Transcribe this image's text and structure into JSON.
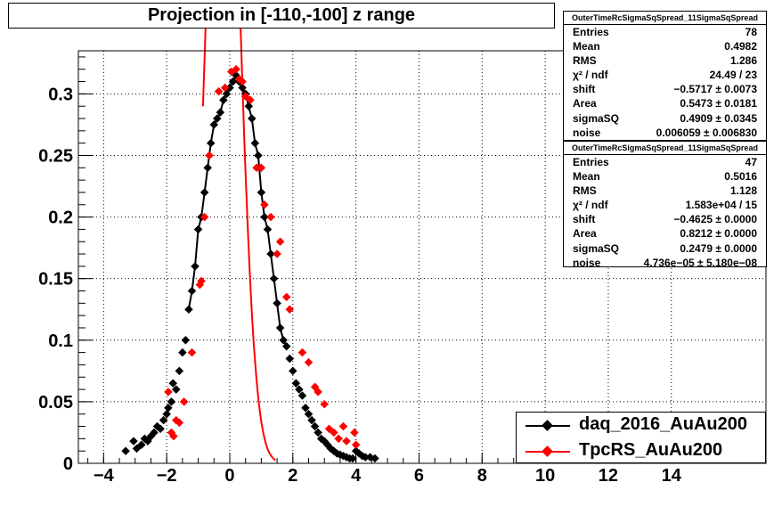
{
  "title": "Projection in [-110,-100] z range",
  "stats": [
    {
      "name": "OuterTimeRcSigmaSqSpread_11SigmaSqSpread",
      "rows": [
        {
          "k": "Entries",
          "v": "78"
        },
        {
          "k": "Mean",
          "v": "0.4982"
        },
        {
          "k": "RMS",
          "v": "1.286"
        },
        {
          "k": "χ² / ndf",
          "v": "24.49 / 23"
        },
        {
          "k": "shift",
          "v": "−0.5717 ± 0.0073"
        },
        {
          "k": "Area",
          "v": "0.5473 ± 0.0181"
        },
        {
          "k": "sigmaSQ",
          "v": "0.4909 ± 0.0345"
        },
        {
          "k": "noise",
          "v": "0.006059 ± 0.006830"
        }
      ]
    },
    {
      "name": "OuterTimeRcSigmaSqSpread_11SigmaSqSpread",
      "rows": [
        {
          "k": "Entries",
          "v": "47"
        },
        {
          "k": "Mean",
          "v": "0.5016"
        },
        {
          "k": "RMS",
          "v": "1.128"
        },
        {
          "k": "χ² / ndf",
          "v": "1.583e+04 / 15"
        },
        {
          "k": "shift",
          "v": "−0.4625 ± 0.0000"
        },
        {
          "k": "Area",
          "v": "0.8212 ± 0.0000"
        },
        {
          "k": "sigmaSQ",
          "v": "0.2479 ± 0.0000"
        },
        {
          "k": "noise",
          "v": "4.736e−05 ± 5.180e−08"
        }
      ]
    }
  ],
  "legend": [
    {
      "label": "daq_2016_AuAu200",
      "color": "#000000"
    },
    {
      "label": "TpcRS_AuAu200",
      "color": "#ff0000"
    }
  ],
  "colors": {
    "black_series": "#000000",
    "red_series": "#ff0000"
  },
  "chart_data": {
    "type": "scatter",
    "title": "Projection in [-110,-100] z range",
    "xlim": [
      -4.8,
      17
    ],
    "ylim": [
      0,
      0.335
    ],
    "grid": true,
    "x_ticks": [
      -4,
      -2,
      0,
      2,
      4,
      6,
      8,
      10,
      12,
      14
    ],
    "x_tick_labels": [
      "−4",
      "−2",
      "0",
      "2",
      "4",
      "6",
      "8",
      "10",
      "12",
      "14"
    ],
    "y_ticks": [
      0,
      0.05,
      0.1,
      0.15,
      0.2,
      0.25,
      0.3
    ],
    "y_tick_labels": [
      "0",
      "0.05",
      "0.1",
      "0.15",
      "0.2",
      "0.25",
      "0.3"
    ],
    "series": [
      {
        "name": "daq_2016_AuAu200",
        "color": "#000000",
        "x": [
          -3.3,
          -3.05,
          -2.95,
          -2.8,
          -2.7,
          -2.6,
          -2.5,
          -2.4,
          -2.3,
          -2.2,
          -2.1,
          -2.0,
          -1.95,
          -1.85,
          -1.8,
          -1.7,
          -1.6,
          -1.5,
          -1.4,
          -1.3,
          -1.2,
          -1.1,
          -1.0,
          -0.9,
          -0.8,
          -0.7,
          -0.6,
          -0.5,
          -0.4,
          -0.3,
          -0.2,
          -0.1,
          0.0,
          0.1,
          0.2,
          0.3,
          0.4,
          0.5,
          0.6,
          0.7,
          0.8,
          0.9,
          1.0,
          1.1,
          1.2,
          1.3,
          1.4,
          1.5,
          1.6,
          1.7,
          1.8,
          1.9,
          2.0,
          2.1,
          2.2,
          2.3,
          2.4,
          2.5,
          2.6,
          2.7,
          2.8,
          2.9,
          3.0,
          3.1,
          3.2,
          3.3,
          3.4,
          3.5,
          3.6,
          3.7,
          3.8,
          3.9,
          4.0,
          4.1,
          4.2,
          4.3,
          4.45,
          4.6
        ],
        "y": [
          0.01,
          0.018,
          0.012,
          0.015,
          0.02,
          0.018,
          0.022,
          0.025,
          0.03,
          0.028,
          0.035,
          0.04,
          0.045,
          0.05,
          0.065,
          0.06,
          0.075,
          0.09,
          0.1,
          0.125,
          0.14,
          0.16,
          0.19,
          0.2,
          0.22,
          0.24,
          0.26,
          0.275,
          0.28,
          0.285,
          0.295,
          0.3,
          0.305,
          0.31,
          0.315,
          0.31,
          0.305,
          0.3,
          0.29,
          0.28,
          0.26,
          0.25,
          0.22,
          0.2,
          0.19,
          0.17,
          0.15,
          0.13,
          0.11,
          0.1,
          0.095,
          0.085,
          0.075,
          0.065,
          0.06,
          0.055,
          0.045,
          0.04,
          0.035,
          0.03,
          0.025,
          0.02,
          0.018,
          0.015,
          0.012,
          0.01,
          0.008,
          0.007,
          0.006,
          0.005,
          0.004,
          0.004,
          0.01,
          0.008,
          0.006,
          0.005,
          0.005,
          0.004
        ]
      },
      {
        "name": "TpcRS_AuAu200",
        "color": "#ff0000",
        "x": [
          -1.95,
          -1.85,
          -1.78,
          -1.7,
          -1.6,
          -1.45,
          -1.2,
          -0.95,
          -0.9,
          -0.8,
          -0.65,
          -0.35,
          -0.15,
          0.05,
          0.2,
          0.3,
          0.4,
          0.5,
          0.65,
          0.85,
          1.0,
          1.1,
          1.3,
          1.5,
          1.6,
          1.8,
          1.9,
          2.3,
          2.5,
          2.7,
          2.8,
          3.0,
          3.15,
          3.3,
          3.45,
          3.6,
          3.7,
          3.95,
          4.0
        ],
        "y": [
          0.058,
          0.025,
          0.022,
          0.035,
          0.033,
          0.05,
          0.09,
          0.145,
          0.148,
          0.2,
          0.25,
          0.302,
          0.305,
          0.318,
          0.32,
          0.312,
          0.31,
          0.298,
          0.295,
          0.24,
          0.24,
          0.21,
          0.2,
          0.17,
          0.18,
          0.135,
          0.125,
          0.09,
          0.082,
          0.062,
          0.058,
          0.048,
          0.028,
          0.025,
          0.02,
          0.03,
          0.018,
          0.025,
          0.015
        ]
      }
    ]
  }
}
